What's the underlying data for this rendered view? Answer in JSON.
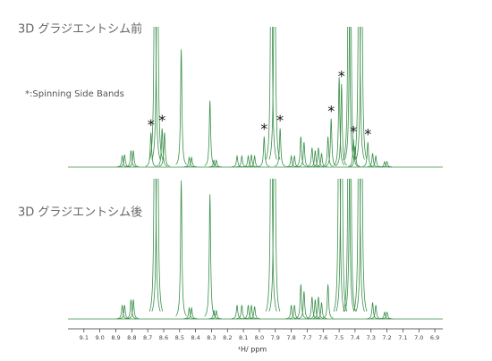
{
  "chart_data": {
    "type": "nmr",
    "xlabel": "¹H/ ppm",
    "legend": "*:Spinning Side Bands",
    "marker": "*",
    "color": "#3a8f4a",
    "xlim": [
      9.2,
      6.85
    ],
    "ylim": [
      0,
      100
    ],
    "xticks": [
      9.1,
      {
        "value": 9,
        "label": "9.0"
      },
      8.9,
      8.8,
      8.7,
      8.6,
      8.5,
      8.4,
      8.3,
      8.2,
      8.1,
      {
        "value": 8,
        "label": "8.0"
      },
      7.9,
      7.8,
      7.7,
      7.6,
      7.5,
      7.4,
      7.3,
      7.2,
      7.1,
      {
        "value": 7,
        "label": "7.0"
      },
      6.9
    ],
    "spectra": [
      {
        "title": "3D グラジエントシム前",
        "x": [
          8.86,
          8.845,
          8.805,
          8.79,
          8.68,
          8.655,
          8.64,
          8.61,
          8.595,
          8.49,
          8.44,
          8.425,
          8.31,
          8.285,
          8.27,
          8.14,
          8.11,
          8.07,
          8.05,
          8.03,
          7.97,
          7.925,
          7.905,
          7.87,
          7.8,
          7.78,
          7.74,
          7.72,
          7.67,
          7.65,
          7.63,
          7.61,
          7.57,
          7.55,
          7.5,
          7.485,
          7.44,
          7.43,
          7.41,
          7.4,
          7.375,
          7.36,
          7.32,
          7.29,
          7.27,
          7.215,
          7.2
        ],
        "values": [
          8,
          9,
          12,
          12,
          25,
          250,
          250,
          28,
          25,
          85,
          7,
          7,
          48,
          5,
          5,
          8,
          8,
          8,
          9,
          8,
          22,
          250,
          250,
          28,
          8,
          8,
          22,
          18,
          14,
          12,
          14,
          10,
          22,
          35,
          65,
          60,
          250,
          250,
          20,
          15,
          250,
          250,
          18,
          10,
          8,
          4,
          4
        ],
        "side_bands": [
          8.68,
          8.61,
          7.97,
          7.87,
          7.55,
          7.485,
          7.41,
          7.32
        ]
      },
      {
        "title": "3D グラジエントシム後",
        "x": [
          8.86,
          8.845,
          8.805,
          8.79,
          8.655,
          8.64,
          8.49,
          8.44,
          8.425,
          8.31,
          8.285,
          8.27,
          8.14,
          8.11,
          8.07,
          8.05,
          8.03,
          7.925,
          7.905,
          7.8,
          7.78,
          7.74,
          7.72,
          7.67,
          7.65,
          7.63,
          7.61,
          7.57,
          7.5,
          7.485,
          7.44,
          7.43,
          7.375,
          7.36,
          7.29,
          7.27,
          7.215,
          7.2
        ],
        "values": [
          10,
          10,
          14,
          14,
          250,
          250,
          100,
          8,
          8,
          90,
          6,
          6,
          10,
          10,
          10,
          10,
          9,
          250,
          250,
          10,
          10,
          25,
          20,
          16,
          14,
          16,
          12,
          25,
          250,
          250,
          250,
          250,
          250,
          250,
          12,
          10,
          5,
          5
        ]
      }
    ]
  }
}
